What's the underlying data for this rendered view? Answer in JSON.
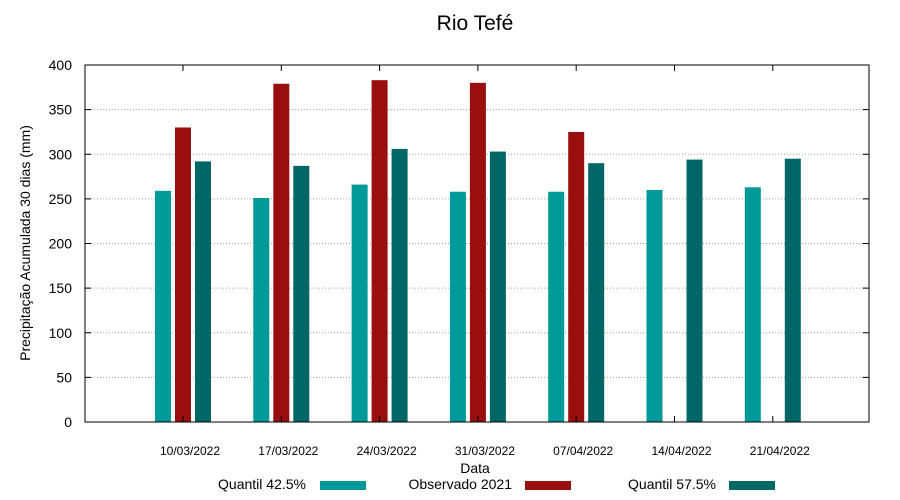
{
  "chart_data": {
    "type": "bar",
    "title": "Rio Tefé",
    "xlabel": "Data",
    "ylabel": "Precipitação Acumulada 30 dias (mm)",
    "ylim": [
      0,
      400
    ],
    "yticks": [
      0,
      50,
      100,
      150,
      200,
      250,
      300,
      350,
      400
    ],
    "grid": true,
    "legend_position": "bottom",
    "categories": [
      "10/03/2022",
      "17/03/2022",
      "24/03/2022",
      "31/03/2022",
      "07/04/2022",
      "14/04/2022",
      "21/04/2022"
    ],
    "series": [
      {
        "name": "Quantil 42.5%",
        "color": "#009999",
        "values": [
          259,
          251,
          266,
          258,
          258,
          260,
          263
        ]
      },
      {
        "name": "Observado 2021",
        "color": "#990f0f",
        "values": [
          330,
          379,
          383,
          380,
          325,
          null,
          null
        ]
      },
      {
        "name": "Quantil 57.5%",
        "color": "#006666",
        "values": [
          292,
          287,
          306,
          303,
          290,
          294,
          295
        ]
      }
    ]
  }
}
